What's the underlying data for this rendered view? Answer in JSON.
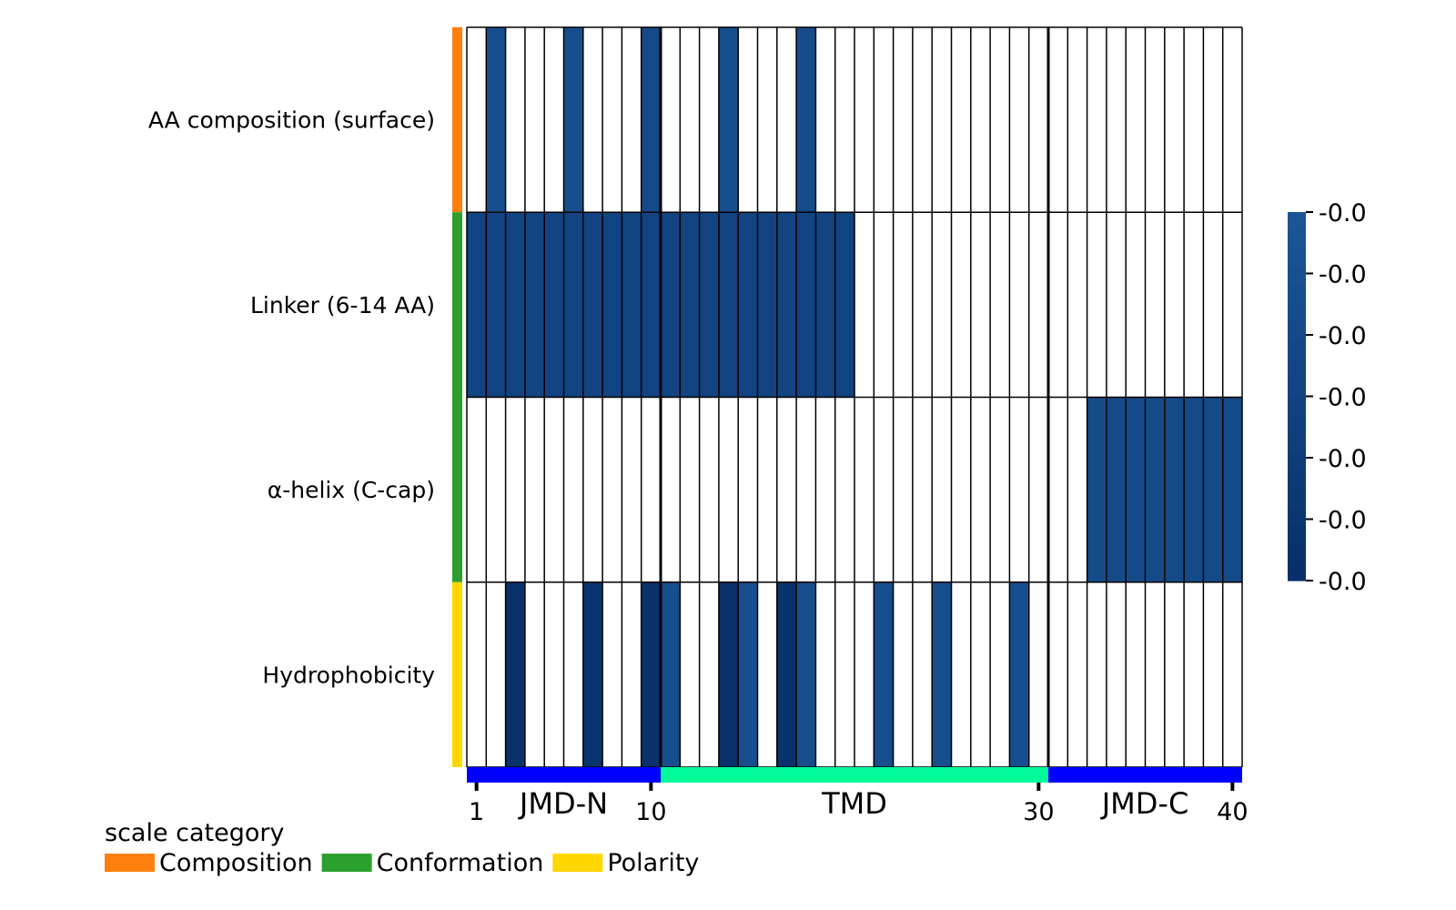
{
  "chart_data": {
    "type": "heatmap",
    "title": "",
    "rows": [
      "AA composition (surface)",
      "Linker (6-14 AA)",
      "α-helix (C-cap)",
      "Hydrophobicity"
    ],
    "row_categories": [
      "Composition",
      "Conformation",
      "Conformation",
      "Polarity"
    ],
    "positions": 40,
    "x_ticks": [
      1,
      10,
      30,
      40
    ],
    "parts": [
      {
        "name": "JMD-N",
        "start": 1,
        "end": 10,
        "color": "#0000ff"
      },
      {
        "name": "TMD",
        "start": 11,
        "end": 30,
        "color": "#00fa9a"
      },
      {
        "name": "JMD-C",
        "start": 31,
        "end": 40,
        "color": "#0000ff"
      }
    ],
    "cells": [
      [
        {
          "pos": 2,
          "level": 0.2
        },
        {
          "pos": 6,
          "level": 0.2
        },
        {
          "pos": 10,
          "level": 0.3
        },
        {
          "pos": 14,
          "level": 0.2
        },
        {
          "pos": 18,
          "level": 0.25
        }
      ],
      [
        {
          "pos": 1,
          "level": 0.45
        },
        {
          "pos": 2,
          "level": 0.45
        },
        {
          "pos": 3,
          "level": 0.45
        },
        {
          "pos": 4,
          "level": 0.45
        },
        {
          "pos": 5,
          "level": 0.45
        },
        {
          "pos": 6,
          "level": 0.45
        },
        {
          "pos": 7,
          "level": 0.45
        },
        {
          "pos": 8,
          "level": 0.45
        },
        {
          "pos": 9,
          "level": 0.45
        },
        {
          "pos": 10,
          "level": 0.45
        },
        {
          "pos": 11,
          "level": 0.45
        },
        {
          "pos": 12,
          "level": 0.45
        },
        {
          "pos": 13,
          "level": 0.45
        },
        {
          "pos": 14,
          "level": 0.45
        },
        {
          "pos": 15,
          "level": 0.45
        },
        {
          "pos": 16,
          "level": 0.45
        },
        {
          "pos": 17,
          "level": 0.45
        },
        {
          "pos": 18,
          "level": 0.45
        },
        {
          "pos": 19,
          "level": 0.45
        },
        {
          "pos": 20,
          "level": 0.45
        }
      ],
      [
        {
          "pos": 33,
          "level": 0.3
        },
        {
          "pos": 34,
          "level": 0.3
        },
        {
          "pos": 35,
          "level": 0.3
        },
        {
          "pos": 36,
          "level": 0.3
        },
        {
          "pos": 37,
          "level": 0.3
        },
        {
          "pos": 38,
          "level": 0.3
        },
        {
          "pos": 39,
          "level": 0.3
        },
        {
          "pos": 40,
          "level": 0.3
        }
      ],
      [
        {
          "pos": 3,
          "level": 0.95
        },
        {
          "pos": 7,
          "level": 0.9
        },
        {
          "pos": 10,
          "level": 0.95
        },
        {
          "pos": 11,
          "level": 0.2
        },
        {
          "pos": 14,
          "level": 0.95
        },
        {
          "pos": 15,
          "level": 0.2
        },
        {
          "pos": 17,
          "level": 0.95
        },
        {
          "pos": 18,
          "level": 0.2
        },
        {
          "pos": 22,
          "level": 0.2
        },
        {
          "pos": 25,
          "level": 0.2
        },
        {
          "pos": 29,
          "level": 0.2
        }
      ]
    ],
    "colorbar": {
      "tick_labels": [
        "-0.0",
        "-0.0",
        "-0.0",
        "-0.0",
        "-0.0",
        "-0.0",
        "-0.0"
      ],
      "color_top": "#1b5596",
      "color_bottom": "#08306b"
    },
    "empty_color": "#ffffff",
    "legend": {
      "title": "scale category",
      "items": [
        {
          "label": "Composition",
          "color": "#ff7f0e"
        },
        {
          "label": "Conformation",
          "color": "#2ca02c"
        },
        {
          "label": "Polarity",
          "color": "#ffd700"
        }
      ]
    }
  }
}
